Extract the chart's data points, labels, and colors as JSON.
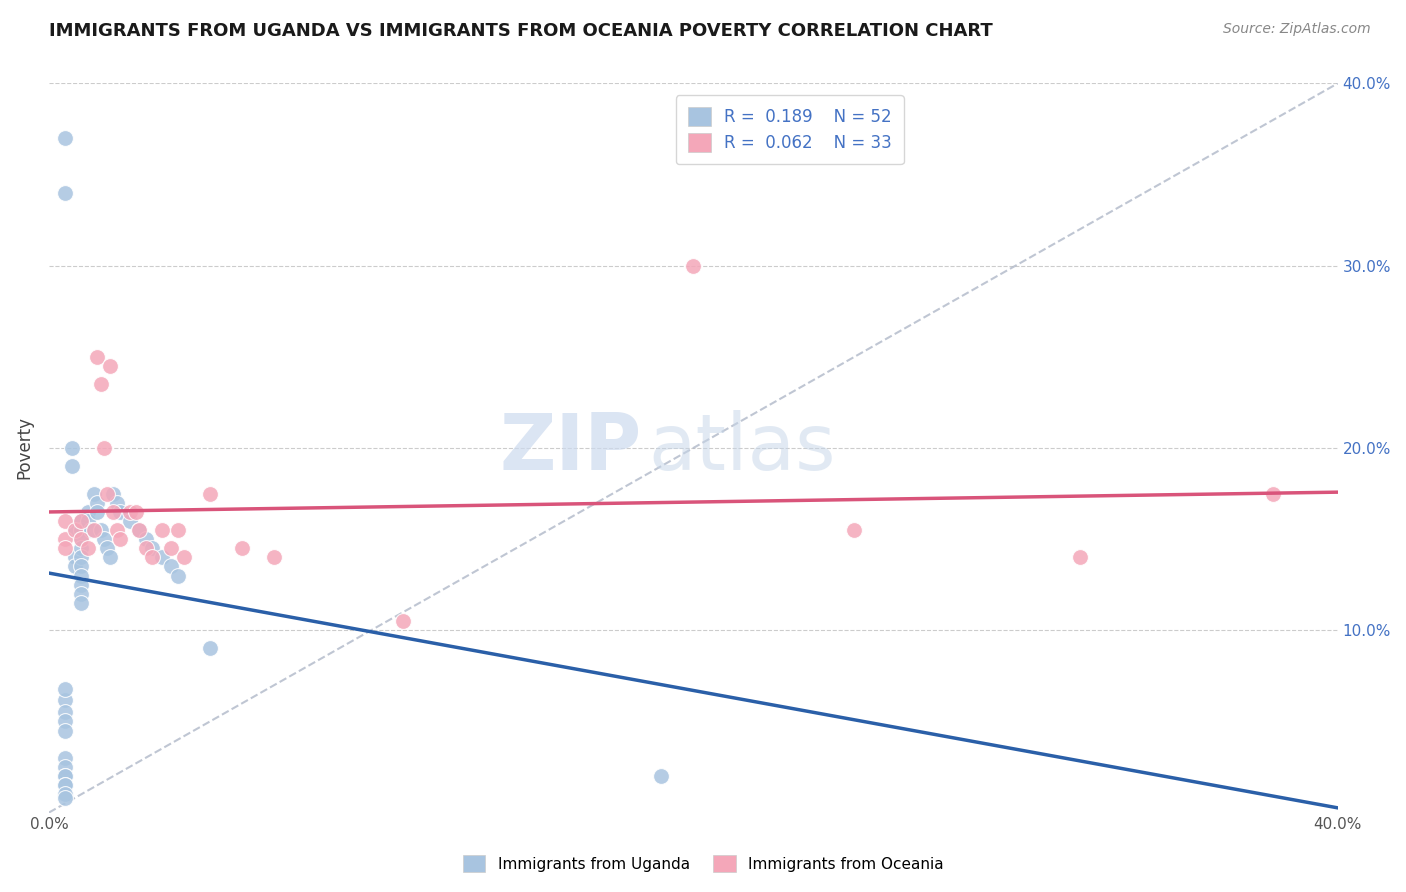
{
  "title": "IMMIGRANTS FROM UGANDA VS IMMIGRANTS FROM OCEANIA POVERTY CORRELATION CHART",
  "source": "Source: ZipAtlas.com",
  "ylabel": "Poverty",
  "xlim": [
    0.0,
    0.4
  ],
  "ylim": [
    0.0,
    0.4
  ],
  "legend_R1": "0.189",
  "legend_N1": "52",
  "legend_R2": "0.062",
  "legend_N2": "33",
  "color_uganda": "#a8c4e0",
  "color_oceania": "#f4a7b9",
  "trendline_uganda": "#2a5fa8",
  "trendline_oceania": "#d9547a",
  "uganda_x": [
    0.005,
    0.005,
    0.005,
    0.005,
    0.005,
    0.005,
    0.005,
    0.005,
    0.005,
    0.005,
    0.005,
    0.005,
    0.005,
    0.005,
    0.005,
    0.007,
    0.007,
    0.008,
    0.008,
    0.008,
    0.01,
    0.01,
    0.01,
    0.01,
    0.01,
    0.01,
    0.01,
    0.01,
    0.01,
    0.01,
    0.012,
    0.012,
    0.013,
    0.014,
    0.015,
    0.015,
    0.016,
    0.017,
    0.018,
    0.019,
    0.02,
    0.021,
    0.022,
    0.025,
    0.028,
    0.03,
    0.032,
    0.035,
    0.038,
    0.04,
    0.05,
    0.19
  ],
  "uganda_y": [
    0.37,
    0.34,
    0.03,
    0.025,
    0.02,
    0.02,
    0.015,
    0.015,
    0.01,
    0.008,
    0.062,
    0.068,
    0.055,
    0.05,
    0.045,
    0.2,
    0.19,
    0.155,
    0.14,
    0.135,
    0.16,
    0.155,
    0.15,
    0.145,
    0.14,
    0.135,
    0.13,
    0.125,
    0.12,
    0.115,
    0.165,
    0.16,
    0.155,
    0.175,
    0.17,
    0.165,
    0.155,
    0.15,
    0.145,
    0.14,
    0.175,
    0.17,
    0.165,
    0.16,
    0.155,
    0.15,
    0.145,
    0.14,
    0.135,
    0.13,
    0.09,
    0.02
  ],
  "oceania_x": [
    0.005,
    0.005,
    0.005,
    0.008,
    0.01,
    0.01,
    0.012,
    0.014,
    0.015,
    0.016,
    0.017,
    0.018,
    0.019,
    0.02,
    0.021,
    0.022,
    0.025,
    0.027,
    0.028,
    0.03,
    0.032,
    0.035,
    0.038,
    0.04,
    0.042,
    0.05,
    0.06,
    0.07,
    0.11,
    0.2,
    0.25,
    0.32,
    0.38
  ],
  "oceania_y": [
    0.16,
    0.15,
    0.145,
    0.155,
    0.16,
    0.15,
    0.145,
    0.155,
    0.25,
    0.235,
    0.2,
    0.175,
    0.245,
    0.165,
    0.155,
    0.15,
    0.165,
    0.165,
    0.155,
    0.145,
    0.14,
    0.155,
    0.145,
    0.155,
    0.14,
    0.175,
    0.145,
    0.14,
    0.105,
    0.3,
    0.155,
    0.14,
    0.175
  ]
}
